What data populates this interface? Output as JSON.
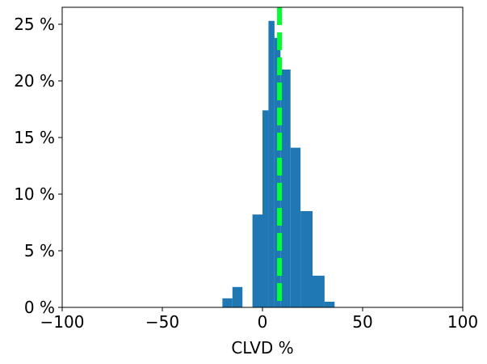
{
  "chart_data": {
    "type": "bar",
    "subtype": "histogram",
    "title": "",
    "xlabel": "CLVD %",
    "ylabel": "",
    "xlim": [
      -100,
      100
    ],
    "ylim": [
      0,
      26.5
    ],
    "grid": false,
    "bar_color": "#1f77b4",
    "bins": [
      {
        "x0": -20,
        "x1": -15,
        "value": 0.8
      },
      {
        "x0": -15,
        "x1": -10,
        "value": 1.8
      },
      {
        "x0": -10,
        "x1": -5,
        "value": 0.0
      },
      {
        "x0": -5,
        "x1": 0,
        "value": 8.2
      },
      {
        "x0": 0,
        "x1": 3,
        "value": 17.4
      },
      {
        "x0": 3,
        "x1": 6,
        "value": 25.3
      },
      {
        "x0": 6,
        "x1": 9,
        "value": 23.8
      },
      {
        "x0": 9,
        "x1": 14,
        "value": 21.0
      },
      {
        "x0": 14,
        "x1": 19,
        "value": 14.1
      },
      {
        "x0": 19,
        "x1": 25,
        "value": 8.5
      },
      {
        "x0": 25,
        "x1": 31,
        "value": 2.8
      },
      {
        "x0": 31,
        "x1": 36,
        "value": 0.5
      }
    ],
    "vline": {
      "x": 8.5,
      "color": "#00ff33",
      "style": "dashed"
    },
    "x_ticks": [
      {
        "value": -100,
        "label": "−100"
      },
      {
        "value": -50,
        "label": "−50"
      },
      {
        "value": 0,
        "label": "0"
      },
      {
        "value": 50,
        "label": "50"
      },
      {
        "value": 100,
        "label": "100"
      }
    ],
    "y_ticks": [
      {
        "value": 0,
        "label": "0 %"
      },
      {
        "value": 5,
        "label": "5 %"
      },
      {
        "value": 10,
        "label": "10 %"
      },
      {
        "value": 15,
        "label": "15 %"
      },
      {
        "value": 20,
        "label": "20 %"
      },
      {
        "value": 25,
        "label": "25 %"
      }
    ]
  }
}
